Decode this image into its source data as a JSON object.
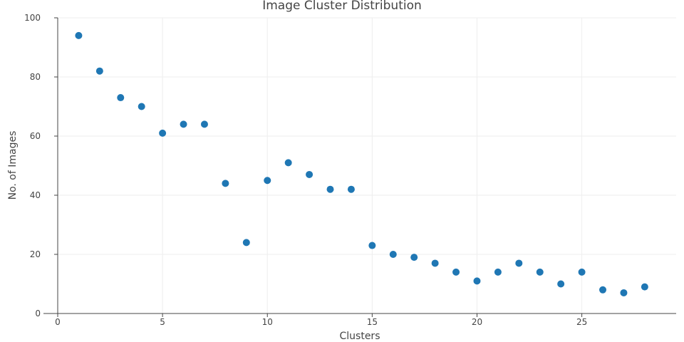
{
  "chart_data": {
    "type": "scatter",
    "title": "Image Cluster Distribution",
    "xlabel": "Clusters",
    "ylabel": "No. of Images",
    "xlim": [
      0,
      29.5
    ],
    "ylim": [
      0,
      100
    ],
    "xticks": [
      0,
      5,
      10,
      15,
      20,
      25
    ],
    "yticks": [
      0,
      20,
      40,
      60,
      80,
      100
    ],
    "grid": true,
    "marker_color": "#1f77b4",
    "points": [
      {
        "x": 1,
        "y": 94
      },
      {
        "x": 2,
        "y": 82
      },
      {
        "x": 3,
        "y": 73
      },
      {
        "x": 4,
        "y": 70
      },
      {
        "x": 5,
        "y": 61
      },
      {
        "x": 6,
        "y": 64
      },
      {
        "x": 7,
        "y": 64
      },
      {
        "x": 8,
        "y": 44
      },
      {
        "x": 9,
        "y": 24
      },
      {
        "x": 10,
        "y": 45
      },
      {
        "x": 11,
        "y": 51
      },
      {
        "x": 12,
        "y": 47
      },
      {
        "x": 13,
        "y": 42
      },
      {
        "x": 14,
        "y": 42
      },
      {
        "x": 15,
        "y": 23
      },
      {
        "x": 16,
        "y": 20
      },
      {
        "x": 17,
        "y": 19
      },
      {
        "x": 18,
        "y": 17
      },
      {
        "x": 19,
        "y": 14
      },
      {
        "x": 20,
        "y": 11
      },
      {
        "x": 21,
        "y": 14
      },
      {
        "x": 22,
        "y": 17
      },
      {
        "x": 23,
        "y": 14
      },
      {
        "x": 24,
        "y": 10
      },
      {
        "x": 25,
        "y": 14
      },
      {
        "x": 26,
        "y": 8
      },
      {
        "x": 27,
        "y": 7
      },
      {
        "x": 28,
        "y": 9
      }
    ]
  }
}
